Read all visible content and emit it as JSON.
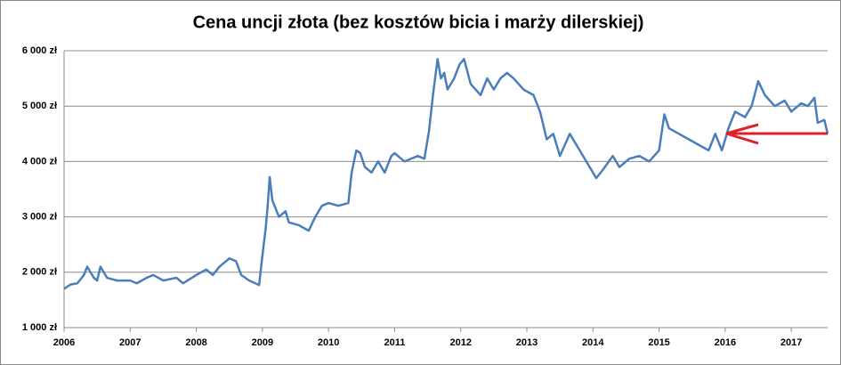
{
  "chart_data": {
    "type": "line",
    "title": "Cena uncji złota (bez kosztów bicia i marży dilerskiej)",
    "x": [
      2006.0,
      2006.1,
      2006.2,
      2006.3,
      2006.35,
      2006.45,
      2006.5,
      2006.55,
      2006.65,
      2006.8,
      2007.0,
      2007.1,
      2007.25,
      2007.35,
      2007.5,
      2007.7,
      2007.8,
      2008.0,
      2008.15,
      2008.25,
      2008.35,
      2008.5,
      2008.6,
      2008.68,
      2008.8,
      2008.95,
      2009.0,
      2009.05,
      2009.08,
      2009.11,
      2009.15,
      2009.25,
      2009.35,
      2009.4,
      2009.55,
      2009.7,
      2009.8,
      2009.9,
      2010.0,
      2010.15,
      2010.3,
      2010.35,
      2010.42,
      2010.48,
      2010.55,
      2010.65,
      2010.75,
      2010.85,
      2010.95,
      2011.0,
      2011.15,
      2011.35,
      2011.45,
      2011.52,
      2011.58,
      2011.65,
      2011.7,
      2011.75,
      2011.8,
      2011.9,
      2011.98,
      2012.05,
      2012.15,
      2012.3,
      2012.4,
      2012.5,
      2012.6,
      2012.7,
      2012.8,
      2012.95,
      2013.1,
      2013.2,
      2013.3,
      2013.4,
      2013.5,
      2013.65,
      2013.8,
      2013.95,
      2014.05,
      2014.15,
      2014.3,
      2014.4,
      2014.55,
      2014.7,
      2014.85,
      2015.0,
      2015.08,
      2015.15,
      2015.3,
      2015.45,
      2015.6,
      2015.75,
      2015.85,
      2015.95,
      2016.05,
      2016.15,
      2016.3,
      2016.4,
      2016.5,
      2016.6,
      2016.75,
      2016.9,
      2017.0,
      2017.15,
      2017.25,
      2017.35,
      2017.4,
      2017.5,
      2017.55
    ],
    "series": [
      {
        "color": "#4a7ebb",
        "values": [
          1700,
          1780,
          1800,
          1950,
          2100,
          1900,
          1850,
          2100,
          1900,
          1850,
          1850,
          1800,
          1900,
          1950,
          1850,
          1900,
          1800,
          1950,
          2050,
          1950,
          2100,
          2250,
          2200,
          1950,
          1850,
          1770,
          2300,
          2800,
          3200,
          3720,
          3300,
          3000,
          3100,
          2900,
          2850,
          2750,
          3000,
          3200,
          3250,
          3200,
          3250,
          3800,
          4200,
          4150,
          3900,
          3800,
          4000,
          3800,
          4100,
          4150,
          4000,
          4100,
          4050,
          4550,
          5200,
          5850,
          5500,
          5600,
          5300,
          5500,
          5750,
          5850,
          5400,
          5200,
          5500,
          5300,
          5500,
          5600,
          5500,
          5300,
          5200,
          4900,
          4400,
          4500,
          4100,
          4500,
          4200,
          3900,
          3700,
          3850,
          4100,
          3900,
          4050,
          4100,
          4000,
          4200,
          4850,
          4600,
          4500,
          4400,
          4300,
          4200,
          4500,
          4200,
          4600,
          4900,
          4800,
          5000,
          5450,
          5200,
          5000,
          5100,
          4900,
          5050,
          5000,
          5150,
          4700,
          4750,
          4500
        ]
      }
    ],
    "xlim": [
      2006,
      2017.55
    ],
    "xticks": [
      2006,
      2007,
      2008,
      2009,
      2010,
      2011,
      2012,
      2013,
      2014,
      2015,
      2016,
      2017
    ],
    "ylim": [
      1000,
      6000
    ],
    "yticks": [
      {
        "value": 1000,
        "label": "1 000 zł"
      },
      {
        "value": 2000,
        "label": "2 000 zł"
      },
      {
        "value": 3000,
        "label": "3 000 zł"
      },
      {
        "value": 4000,
        "label": "4 000 zł"
      },
      {
        "value": 5000,
        "label": "5 000 zł"
      },
      {
        "value": 6000,
        "label": "6 000 zł"
      }
    ],
    "grid": true
  }
}
